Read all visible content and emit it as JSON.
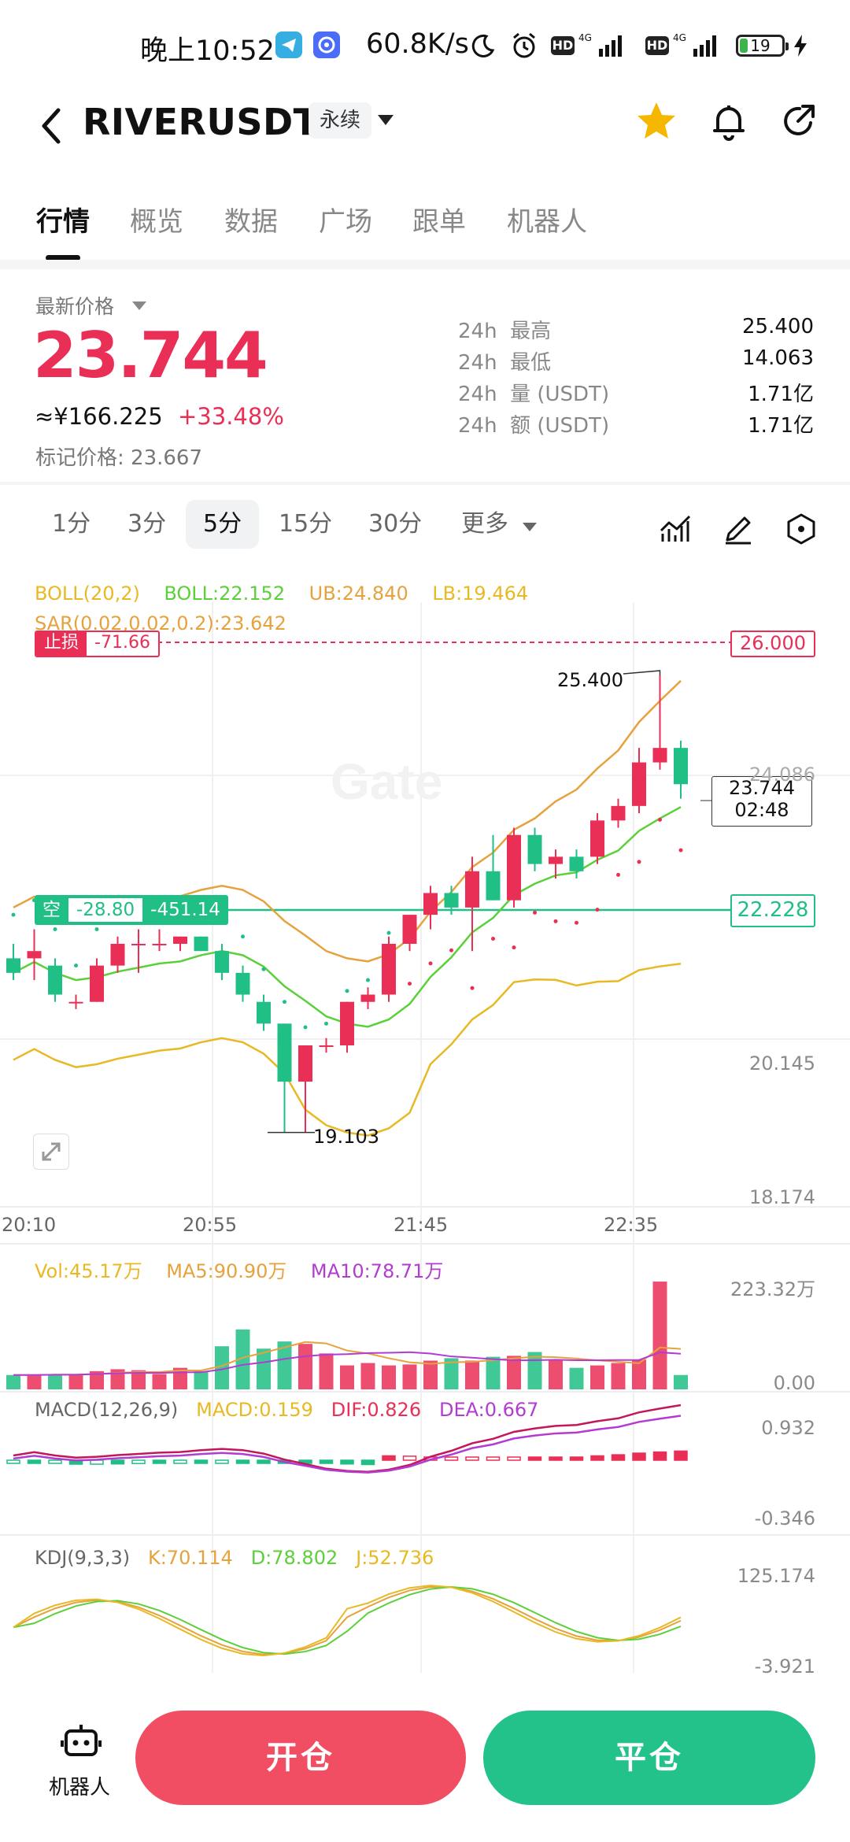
{
  "status_bar": {
    "time": "晚上10:52",
    "net_speed": "60.8K/s",
    "hd1": "HD",
    "net1": "4G",
    "hd2": "HD",
    "net2": "4G",
    "battery": "19",
    "battery_fraction": 0.19
  },
  "header": {
    "pair": "RIVERUSDT",
    "contract_type": "永续"
  },
  "tabs": [
    "行情",
    "概览",
    "数据",
    "广场",
    "跟单",
    "机器人"
  ],
  "price_panel": {
    "latest_label": "最新价格",
    "latest_price": "23.744",
    "cny_price": "≈¥166.225",
    "change": "+33.48%",
    "mark_label": "标记价格:",
    "mark_price": "23.667",
    "stats": [
      {
        "period": "24h",
        "label": "最高",
        "value": "25.400"
      },
      {
        "period": "24h",
        "label": "最低",
        "value": "14.063"
      },
      {
        "period": "24h",
        "label": "量 (USDT)",
        "value": "1.71亿"
      },
      {
        "period": "24h",
        "label": "额 (USDT)",
        "value": "1.71亿"
      }
    ]
  },
  "intervals": {
    "items": [
      "1分",
      "3分",
      "5分",
      "15分",
      "30分"
    ],
    "active": "5分",
    "more": "更多"
  },
  "chart": {
    "boll_legend": {
      "name": "BOLL(20,2)",
      "mid": "BOLL:22.152",
      "ub": "UB:24.840",
      "lb": "LB:19.464"
    },
    "sar_legend": "SAR(0.02,0.02,0.2):23.642",
    "stop_loss": {
      "label": "止损",
      "value": "-71.66",
      "price": "26.000"
    },
    "position": {
      "side": "空",
      "pnl": "-28.80",
      "pnl2": "-451.14",
      "price": "22.228"
    },
    "current_price_tag": {
      "price": "23.744",
      "countdown": "02:48"
    },
    "high_marker": "25.400",
    "low_marker": "19.103",
    "y_labels": [
      "24.086",
      "20.145",
      "18.174"
    ],
    "x_labels": [
      "20:10",
      "20:55",
      "21:45",
      "22:35"
    ],
    "vol_legend": {
      "vol": "Vol:45.17万",
      "ma5": "MA5:90.90万",
      "ma10": "MA10:78.71万"
    },
    "vol_axis": [
      "223.32万",
      "0.00"
    ],
    "macd_legend": {
      "name": "MACD(12,26,9)",
      "macd": "MACD:0.159",
      "dif": "DIF:0.826",
      "dea": "DEA:0.667"
    },
    "macd_axis": [
      "0.932",
      "-0.346"
    ],
    "kdj_legend": {
      "name": "KDJ(9,3,3)",
      "k": "K:70.114",
      "d": "D:78.802",
      "j": "J:52.736"
    },
    "kdj_axis": [
      "125.174",
      "-3.921"
    ],
    "watermark": "Gate"
  },
  "colors": {
    "up": "#ea2f57",
    "down": "#1fbf85",
    "boll_upper": "#e6a23c",
    "boll_mid": "#5bd03a",
    "boll_lower": "#e8b923",
    "purple": "#b23cd1"
  },
  "chart_data": {
    "type": "candlestick",
    "interval": "5分",
    "note_series": "approximate OHLC read from candles",
    "candles": [
      {
        "o": 21.5,
        "h": 21.7,
        "l": 21.2,
        "c": 21.3
      },
      {
        "o": 21.5,
        "h": 21.9,
        "l": 21.2,
        "c": 21.6
      },
      {
        "o": 21.4,
        "h": 21.5,
        "l": 20.9,
        "c": 21.0
      },
      {
        "o": 20.9,
        "h": 21.0,
        "l": 20.8,
        "c": 20.9
      },
      {
        "o": 20.9,
        "h": 21.5,
        "l": 20.9,
        "c": 21.4
      },
      {
        "o": 21.4,
        "h": 21.8,
        "l": 21.3,
        "c": 21.7
      },
      {
        "o": 21.7,
        "h": 21.9,
        "l": 21.3,
        "c": 21.7
      },
      {
        "o": 21.7,
        "h": 21.9,
        "l": 21.6,
        "c": 21.7
      },
      {
        "o": 21.7,
        "h": 21.8,
        "l": 21.6,
        "c": 21.8
      },
      {
        "o": 21.8,
        "h": 21.8,
        "l": 21.6,
        "c": 21.6
      },
      {
        "o": 21.6,
        "h": 21.7,
        "l": 21.2,
        "c": 21.3
      },
      {
        "o": 21.3,
        "h": 21.4,
        "l": 20.9,
        "c": 21.0
      },
      {
        "o": 20.9,
        "h": 21.0,
        "l": 20.5,
        "c": 20.6
      },
      {
        "o": 20.6,
        "h": 20.6,
        "l": 19.1,
        "c": 19.8
      },
      {
        "o": 19.8,
        "h": 20.3,
        "l": 19.1,
        "c": 20.3
      },
      {
        "o": 20.3,
        "h": 20.4,
        "l": 20.2,
        "c": 20.3
      },
      {
        "o": 20.3,
        "h": 20.9,
        "l": 20.2,
        "c": 20.9
      },
      {
        "o": 20.9,
        "h": 21.1,
        "l": 20.8,
        "c": 21.0
      },
      {
        "o": 21.0,
        "h": 21.8,
        "l": 20.9,
        "c": 21.7
      },
      {
        "o": 21.7,
        "h": 22.1,
        "l": 21.6,
        "c": 22.1
      },
      {
        "o": 22.1,
        "h": 22.5,
        "l": 21.9,
        "c": 22.4
      },
      {
        "o": 22.4,
        "h": 22.5,
        "l": 22.1,
        "c": 22.2
      },
      {
        "o": 22.2,
        "h": 22.9,
        "l": 21.6,
        "c": 22.7
      },
      {
        "o": 22.7,
        "h": 23.2,
        "l": 22.3,
        "c": 22.3
      },
      {
        "o": 22.3,
        "h": 23.3,
        "l": 22.2,
        "c": 23.2
      },
      {
        "o": 23.2,
        "h": 23.3,
        "l": 22.7,
        "c": 22.8
      },
      {
        "o": 22.8,
        "h": 23.0,
        "l": 22.6,
        "c": 22.9
      },
      {
        "o": 22.9,
        "h": 23.0,
        "l": 22.6,
        "c": 22.7
      },
      {
        "o": 22.9,
        "h": 23.5,
        "l": 22.8,
        "c": 23.4
      },
      {
        "o": 23.4,
        "h": 23.7,
        "l": 23.3,
        "c": 23.6
      },
      {
        "o": 23.6,
        "h": 24.4,
        "l": 23.5,
        "c": 24.2
      },
      {
        "o": 24.2,
        "h": 25.4,
        "l": 24.1,
        "c": 24.4
      },
      {
        "o": 24.4,
        "h": 24.5,
        "l": 23.7,
        "c": 23.9
      }
    ],
    "y_range": [
      18.0,
      26.3
    ],
    "volume": [
      30,
      30,
      32,
      30,
      38,
      42,
      40,
      32,
      45,
      38,
      90,
      125,
      85,
      100,
      95,
      75,
      50,
      55,
      50,
      52,
      60,
      65,
      60,
      68,
      70,
      78,
      60,
      45,
      50,
      55,
      62,
      225,
      30
    ],
    "volume_range": [
      0,
      230
    ]
  }
}
